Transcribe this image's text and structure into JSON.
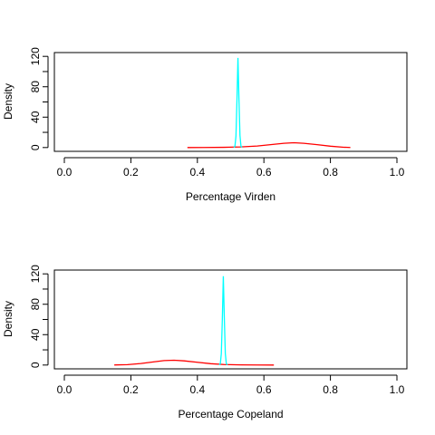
{
  "chart_data": [
    {
      "type": "line",
      "xlabel": "Percentage Virden",
      "ylabel": "Density",
      "xlim": [
        -0.03,
        1.03
      ],
      "ylim": [
        -5,
        125
      ],
      "xticks": [
        0.0,
        0.2,
        0.4,
        0.6,
        0.8,
        1.0
      ],
      "xtick_labels": [
        "0.0",
        "0.2",
        "0.4",
        "0.6",
        "0.8",
        "1.0"
      ],
      "yticks": [
        0,
        20,
        40,
        60,
        80,
        100,
        120
      ],
      "ytick_labels": [
        "0",
        "",
        "40",
        "",
        "80",
        "",
        "120"
      ],
      "grid": false,
      "series": [
        {
          "color": "#ff0000",
          "x": [
            0.37,
            0.42,
            0.48,
            0.53,
            0.58,
            0.62,
            0.66,
            0.69,
            0.72,
            0.76,
            0.8,
            0.84,
            0.86
          ],
          "y": [
            0.0,
            0.1,
            0.3,
            0.8,
            2.0,
            3.8,
            5.6,
            6.3,
            5.6,
            3.8,
            1.8,
            0.4,
            0.1
          ]
        },
        {
          "color": "#00ffff",
          "x": [
            0.51,
            0.513,
            0.516,
            0.519,
            0.522,
            0.525,
            0.528,
            0.531,
            0.534
          ],
          "y": [
            0,
            2,
            15,
            62,
            118,
            64,
            16,
            2,
            0
          ]
        }
      ]
    },
    {
      "type": "line",
      "xlabel": "Percentage Copeland",
      "ylabel": "Density",
      "xlim": [
        -0.03,
        1.03
      ],
      "ylim": [
        -5,
        125
      ],
      "xticks": [
        0.0,
        0.2,
        0.4,
        0.6,
        0.8,
        1.0
      ],
      "xtick_labels": [
        "0.0",
        "0.2",
        "0.4",
        "0.6",
        "0.8",
        "1.0"
      ],
      "yticks": [
        0,
        20,
        40,
        60,
        80,
        100,
        120
      ],
      "ytick_labels": [
        "0",
        "",
        "40",
        "",
        "80",
        "",
        "120"
      ],
      "grid": false,
      "series": [
        {
          "color": "#ff0000",
          "x": [
            0.15,
            0.19,
            0.23,
            0.27,
            0.3,
            0.33,
            0.36,
            0.4,
            0.44,
            0.48,
            0.53,
            0.58,
            0.63
          ],
          "y": [
            0.1,
            0.5,
            2.0,
            4.2,
            5.9,
            6.3,
            5.5,
            3.6,
            1.8,
            0.7,
            0.2,
            0.05,
            0.0
          ]
        },
        {
          "color": "#00ffff",
          "x": [
            0.466,
            0.469,
            0.472,
            0.475,
            0.478,
            0.481,
            0.484,
            0.487,
            0.49
          ],
          "y": [
            0,
            2,
            15,
            60,
            117,
            62,
            15,
            2,
            0
          ]
        }
      ]
    }
  ]
}
